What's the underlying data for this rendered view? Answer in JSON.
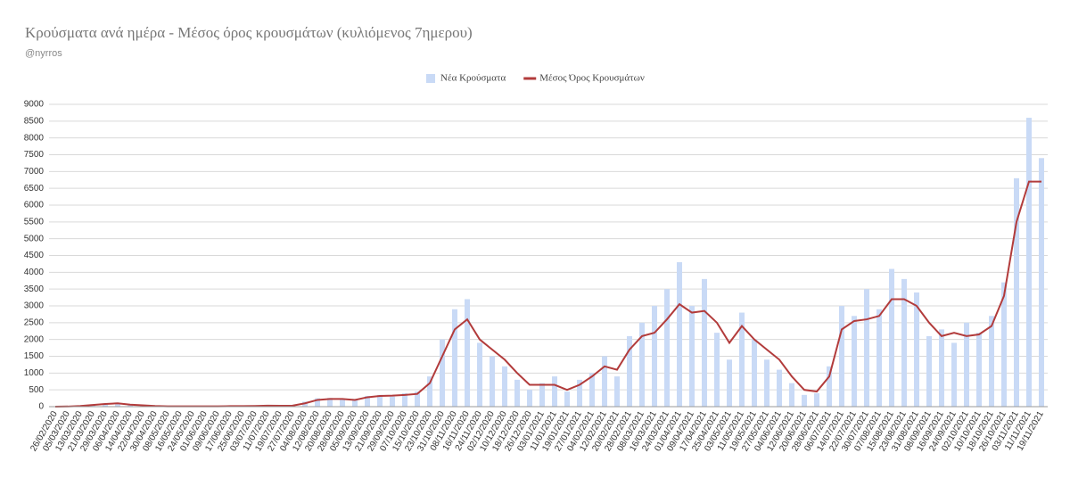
{
  "chart_data": {
    "type": "bar-line",
    "title": "Κρούσματα ανά ημέρα - Μέσος όρος κρουσμάτων (κυλιόμενος 7ημερου)",
    "subtitle": "@nyrros",
    "categories": [
      "26/02/2020",
      "05/03/2020",
      "13/03/2020",
      "21/03/2020",
      "29/03/2020",
      "06/04/2020",
      "14/04/2020",
      "22/04/2020",
      "30/04/2020",
      "08/05/2020",
      "16/05/2020",
      "24/05/2020",
      "01/06/2020",
      "09/06/2020",
      "17/06/2020",
      "25/06/2020",
      "03/07/2020",
      "11/07/2020",
      "19/07/2020",
      "27/07/2020",
      "04/08/2020",
      "12/08/2020",
      "20/08/2020",
      "28/08/2020",
      "05/09/2020",
      "13/09/2020",
      "21/09/2020",
      "29/09/2020",
      "07/10/2020",
      "15/10/2020",
      "23/10/2020",
      "31/10/2020",
      "08/11/2020",
      "16/11/2020",
      "24/11/2020",
      "02/12/2020",
      "10/12/2020",
      "18/12/2020",
      "26/12/2020",
      "03/01/2021",
      "11/01/2021",
      "19/01/2021",
      "27/01/2021",
      "04/02/2021",
      "12/02/2021",
      "20/02/2021",
      "28/02/2021",
      "08/03/2021",
      "16/03/2021",
      "24/03/2021",
      "01/04/2021",
      "09/04/2021",
      "17/04/2021",
      "25/04/2021",
      "03/05/2021",
      "11/05/2021",
      "19/05/2021",
      "27/05/2021",
      "04/06/2021",
      "12/06/2021",
      "20/06/2021",
      "28/06/2021",
      "06/07/2021",
      "14/07/2021",
      "22/07/2021",
      "30/07/2021",
      "07/08/2021",
      "15/08/2021",
      "23/08/2021",
      "31/08/2021",
      "08/09/2021",
      "16/09/2021",
      "24/09/2021",
      "02/10/2021",
      "10/10/2021",
      "18/10/2021",
      "26/10/2021",
      "03/11/2021",
      "11/11/2021",
      "19/11/2021"
    ],
    "series": [
      {
        "name": "Νέα Κρούσματα",
        "kind": "bar",
        "color": "#c9daf6",
        "values": [
          0,
          8,
          30,
          70,
          95,
          80,
          50,
          30,
          15,
          10,
          5,
          8,
          10,
          12,
          18,
          20,
          25,
          35,
          30,
          40,
          150,
          250,
          260,
          220,
          230,
          320,
          350,
          300,
          400,
          450,
          900,
          2000,
          2900,
          3200,
          1900,
          1500,
          1200,
          800,
          500,
          700,
          900,
          450,
          800,
          1000,
          1500,
          900,
          2100,
          2500,
          3000,
          3500,
          4300,
          3000,
          3800,
          2200,
          1400,
          2800,
          2000,
          1400,
          1100,
          700,
          350,
          400,
          1200,
          3000,
          2700,
          3500,
          2900,
          4100,
          3800,
          3400,
          2100,
          2300,
          1900,
          2500,
          2200,
          2700,
          3700,
          6800,
          8600,
          7400
        ]
      },
      {
        "name": "Μέσος Όρος Κρουσμάτων",
        "kind": "line",
        "color": "#b23b3b",
        "values": [
          0,
          5,
          20,
          50,
          80,
          100,
          60,
          40,
          20,
          10,
          10,
          10,
          10,
          10,
          15,
          15,
          20,
          30,
          25,
          30,
          100,
          200,
          230,
          230,
          200,
          280,
          320,
          330,
          350,
          380,
          700,
          1500,
          2300,
          2600,
          2000,
          1700,
          1400,
          1000,
          650,
          650,
          650,
          500,
          650,
          900,
          1200,
          1100,
          1700,
          2100,
          2200,
          2600,
          3050,
          2800,
          2850,
          2500,
          1900,
          2400,
          2000,
          1700,
          1400,
          900,
          500,
          450,
          900,
          2300,
          2550,
          2600,
          2700,
          3200,
          3200,
          3000,
          2500,
          2100,
          2200,
          2100,
          2150,
          2400,
          3300,
          5500,
          6700,
          6700
        ]
      }
    ],
    "ylim": [
      0,
      9000
    ],
    "yticks": [
      0,
      500,
      1000,
      1500,
      2000,
      2500,
      3000,
      3500,
      4000,
      4500,
      5000,
      5500,
      6000,
      6500,
      7000,
      7500,
      8000,
      8500,
      9000
    ],
    "grid": true,
    "legend": "top"
  }
}
